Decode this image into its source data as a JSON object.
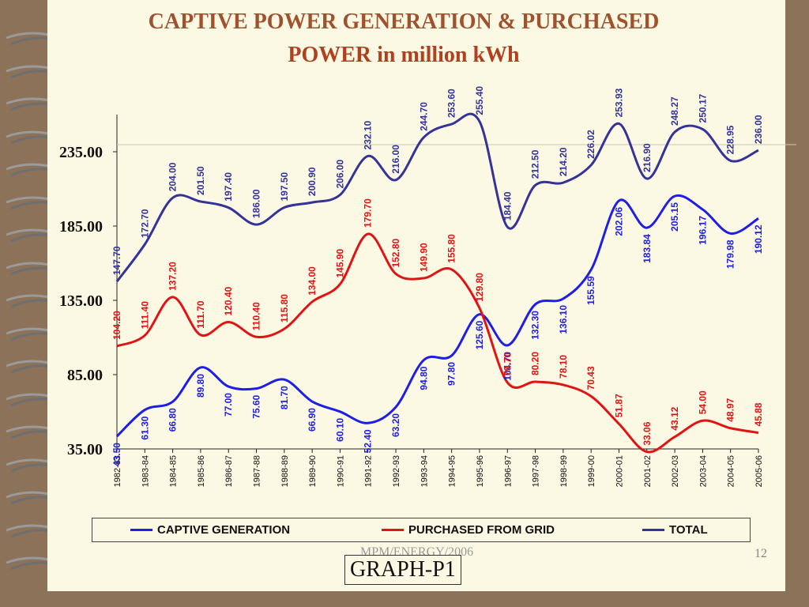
{
  "title_line1": "CAPTIVE POWER GENERATION & PURCHASED",
  "title_line2": "POWER in million kWh",
  "footer": "MPM/ENERGY/2006",
  "page_number": "12",
  "graph_label": "GRAPH-P1",
  "colors": {
    "captive": "#1e1ee6",
    "purchased": "#e01414",
    "total": "#33339a",
    "background": "#fbf8e3",
    "frame": "#8b7258"
  },
  "chart_data": {
    "type": "line",
    "categories": [
      "1982-83",
      "1983-84",
      "1984-85",
      "1985-86",
      "1986-87",
      "1987-88",
      "1988-89",
      "1989-90",
      "1990-91",
      "1991-92",
      "1992-93",
      "1993-94",
      "1994-95",
      "1995-96",
      "1996-97",
      "1997-98",
      "1998-99",
      "1999-00",
      "2000-01",
      "2001-02",
      "2002-03",
      "2003-04",
      "2004-05",
      "2005-06"
    ],
    "y_ticks": [
      "35.00",
      "85.00",
      "135.00",
      "185.00",
      "235.00"
    ],
    "ylim": [
      35,
      260
    ],
    "legend_position": "bottom",
    "series": [
      {
        "name": "CAPTIVE GENERATION",
        "values": [
          43.5,
          61.3,
          66.8,
          89.8,
          77.0,
          75.6,
          81.7,
          66.9,
          60.1,
          52.4,
          63.2,
          94.8,
          97.8,
          125.6,
          104.7,
          132.3,
          136.1,
          155.59,
          202.06,
          183.84,
          205.15,
          196.17,
          179.98,
          190.12
        ],
        "labels": [
          "43.50",
          "61.30",
          "66.80",
          "89.80",
          "77.00",
          "75.60",
          "81.70",
          "66.90",
          "60.10",
          "52.40",
          "63.20",
          "94.80",
          "97.80",
          "125.60",
          "104.70",
          "132.30",
          "136.10",
          "155.59",
          "202.06",
          "183.84",
          "205.15",
          "196.17",
          "179.98",
          "190.12"
        ]
      },
      {
        "name": "PURCHASED FROM GRID",
        "values": [
          104.2,
          111.4,
          137.2,
          111.7,
          120.4,
          110.4,
          115.8,
          134.0,
          145.9,
          179.7,
          152.8,
          149.9,
          155.8,
          129.8,
          79.7,
          80.2,
          78.1,
          70.43,
          51.87,
          33.06,
          43.12,
          54.0,
          48.97,
          45.88
        ],
        "labels": [
          "104.20",
          "111.40",
          "137.20",
          "111.70",
          "120.40",
          "110.40",
          "115.80",
          "134.00",
          "145.90",
          "179.70",
          "152.80",
          "149.90",
          "155.80",
          "129.80",
          "79.70",
          "80.20",
          "78.10",
          "70.43",
          "51.87",
          "33.06",
          "43.12",
          "54.00",
          "48.97",
          "45.88"
        ]
      },
      {
        "name": "TOTAL",
        "values": [
          147.7,
          172.7,
          204.0,
          201.5,
          197.4,
          186.0,
          197.5,
          200.9,
          206.0,
          232.1,
          216.0,
          244.7,
          253.6,
          255.4,
          184.4,
          212.5,
          214.2,
          226.02,
          253.93,
          216.9,
          248.27,
          250.17,
          228.95,
          236.0
        ],
        "labels": [
          "147.70",
          "172.70",
          "204.00",
          "201.50",
          "197.40",
          "186.00",
          "197.50",
          "200.90",
          "206.00",
          "232.10",
          "216.00",
          "244.70",
          "253.60",
          "255.40",
          "184.40",
          "212.50",
          "214.20",
          "226.02",
          "253.93",
          "216.90",
          "248.27",
          "250.17",
          "228.95",
          "236.00"
        ]
      }
    ]
  }
}
